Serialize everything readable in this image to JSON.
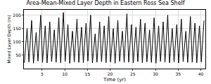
{
  "chart_data": {
    "type": "line",
    "title": "Area-Mean-Mixed Layer Depth in Eastern Ross Sea Shelf",
    "x_label": "Time (yr)",
    "y_label": "Mixed Layer Depth (m)",
    "x": [
      1.1,
      1.7,
      2.1,
      2.7,
      3.1,
      3.7,
      4.1,
      4.7,
      5.1,
      5.7,
      6.1,
      6.7,
      7.1,
      7.7,
      8.1,
      8.7,
      9.1,
      9.7,
      10.1,
      10.7,
      11.1,
      11.7,
      12.1,
      12.7,
      13.1,
      13.7,
      14.1,
      14.7,
      15.1,
      15.7,
      16.1,
      16.7,
      17.1,
      17.7,
      18.1,
      18.7,
      19.1,
      19.7,
      20.1,
      20.7,
      21.1,
      21.7,
      22.1,
      22.7,
      23.1,
      23.7,
      24.1,
      24.7,
      25.1,
      25.7,
      26.1,
      26.7,
      27.1,
      27.7,
      28.1,
      28.7,
      29.1,
      29.7,
      30.1,
      30.7,
      31.1,
      31.7,
      32.1,
      32.7,
      33.1,
      33.7,
      34.1,
      34.7,
      35.1,
      35.7,
      36.1,
      36.7,
      37.1,
      37.7,
      38.1,
      38.7,
      39.1,
      39.7,
      40.1,
      40.7
    ],
    "series": [
      {
        "name": "Mixed Layer Depth",
        "color": "#000000",
        "values": [
          22,
          150,
          25,
          180,
          20,
          135,
          28,
          200,
          23,
          160,
          21,
          175,
          26,
          145,
          24,
          190,
          22,
          210,
          27,
          165,
          20,
          140,
          25,
          185,
          23,
          155,
          22,
          170,
          28,
          200,
          21,
          130,
          24,
          175,
          26,
          160,
          22,
          195,
          25,
          150,
          20,
          180,
          27,
          140,
          23,
          205,
          24,
          165,
          21,
          155,
          26,
          185,
          22,
          170,
          25,
          145,
          23,
          190,
          20,
          160,
          27,
          175,
          24,
          200,
          22,
          150,
          25,
          165,
          21,
          185,
          26,
          140,
          23,
          195,
          24,
          170,
          22,
          160,
          25,
          180
        ]
      }
    ],
    "xlim": [
      1,
      41
    ],
    "xticks": [
      5,
      10,
      15,
      20,
      25,
      30,
      35,
      40
    ],
    "ylim": [
      0,
      220
    ],
    "yticks": [
      50,
      100,
      150,
      200
    ],
    "grid": true
  }
}
